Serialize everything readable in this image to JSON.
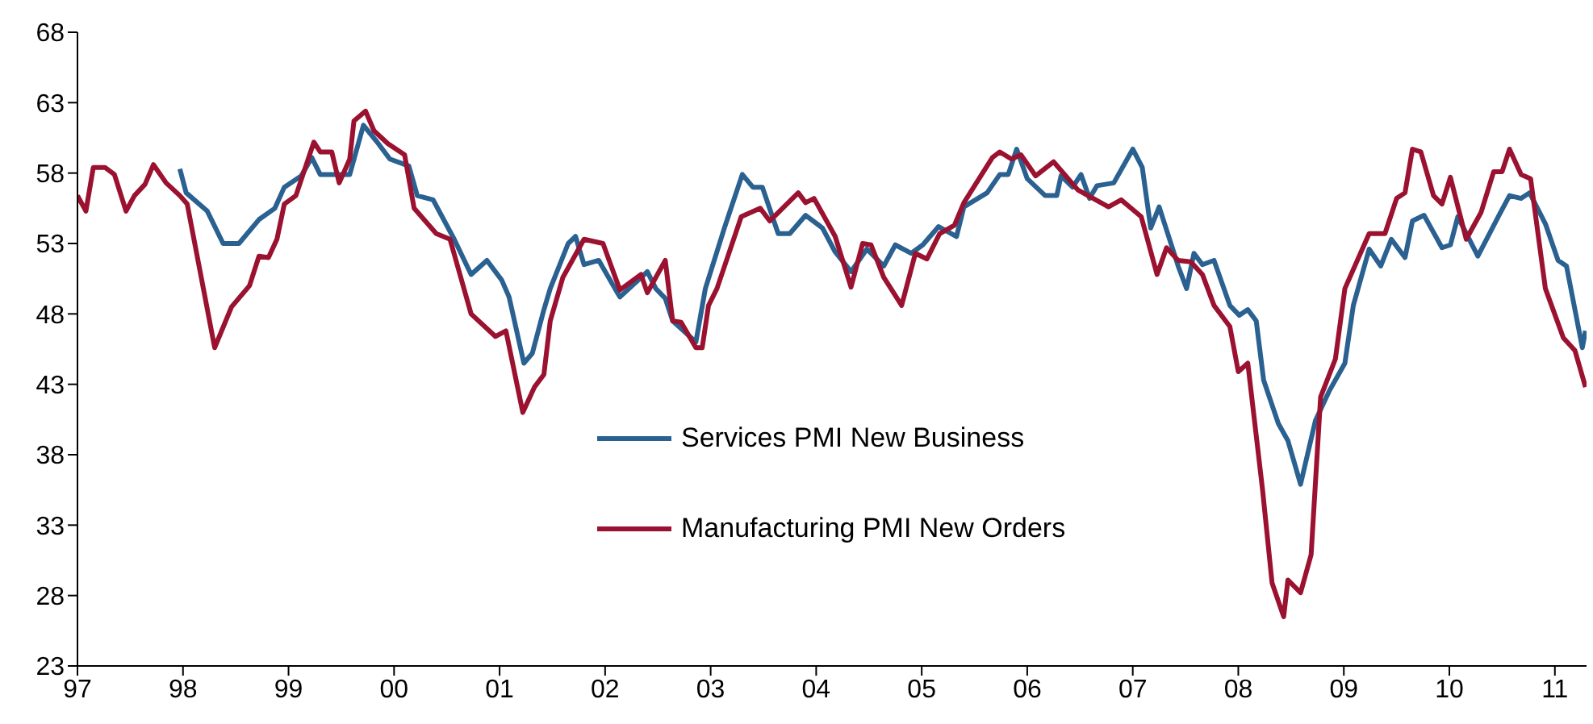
{
  "chart_data": {
    "type": "line",
    "xlim": [
      1997,
      2011.3
    ],
    "xticks": [
      {
        "value": 1997,
        "label": "97"
      },
      {
        "value": 1998,
        "label": "98"
      },
      {
        "value": 1999,
        "label": "99"
      },
      {
        "value": 2000,
        "label": "00"
      },
      {
        "value": 2001,
        "label": "01"
      },
      {
        "value": 2002,
        "label": "02"
      },
      {
        "value": 2003,
        "label": "03"
      },
      {
        "value": 2004,
        "label": "04"
      },
      {
        "value": 2005,
        "label": "05"
      },
      {
        "value": 2006,
        "label": "06"
      },
      {
        "value": 2007,
        "label": "07"
      },
      {
        "value": 2008,
        "label": "08"
      },
      {
        "value": 2009,
        "label": "09"
      },
      {
        "value": 2010,
        "label": "10"
      },
      {
        "value": 2011,
        "label": "11"
      }
    ],
    "ylim": [
      23,
      68
    ],
    "yticks": [
      23,
      28,
      33,
      38,
      43,
      48,
      53,
      58,
      63,
      68
    ],
    "grid": false,
    "legend": "center",
    "marker": "none",
    "line_style": "solid",
    "series": [
      {
        "name": "Services PMI New Business",
        "color": "#2a6190",
        "x": [
          1997.97,
          1998.03,
          1998.23,
          1998.38,
          1998.53,
          1998.72,
          1998.87,
          1998.96,
          1999.12,
          1999.22,
          1999.3,
          1999.45,
          1999.58,
          1999.71,
          1999.84,
          1999.96,
          2000.14,
          2000.22,
          2000.37,
          2000.57,
          2000.73,
          2000.88,
          2001.02,
          2001.09,
          2001.23,
          2001.31,
          2001.42,
          2001.48,
          2001.65,
          2001.72,
          2001.8,
          2001.94,
          2002.14,
          2002.4,
          2002.48,
          2002.57,
          2002.64,
          2002.86,
          2002.95,
          2003.13,
          2003.3,
          2003.4,
          2003.49,
          2003.64,
          2003.75,
          2003.9,
          2004.06,
          2004.18,
          2004.33,
          2004.48,
          2004.64,
          2004.75,
          2004.9,
          2005.01,
          2005.16,
          2005.33,
          2005.4,
          2005.62,
          2005.74,
          2005.82,
          2005.9,
          2006.0,
          2006.17,
          2006.28,
          2006.32,
          2006.43,
          2006.51,
          2006.59,
          2006.66,
          2006.82,
          2007.0,
          2007.09,
          2007.17,
          2007.25,
          2007.43,
          2007.51,
          2007.58,
          2007.66,
          2007.77,
          2007.92,
          2008.01,
          2008.09,
          2008.17,
          2008.24,
          2008.38,
          2008.47,
          2008.59,
          2008.73,
          2008.86,
          2009.01,
          2009.09,
          2009.24,
          2009.35,
          2009.45,
          2009.58,
          2009.65,
          2009.76,
          2009.93,
          2010.01,
          2010.08,
          2010.27,
          2010.47,
          2010.57,
          2010.68,
          2010.76,
          2010.91,
          2011.03,
          2011.11,
          2011.26,
          2011.29
        ],
        "values": [
          58.3,
          56.6,
          55.3,
          53.0,
          53.0,
          54.7,
          55.5,
          57.0,
          57.8,
          59.1,
          57.9,
          57.9,
          57.9,
          61.4,
          60.2,
          59.0,
          58.5,
          56.4,
          56.1,
          53.3,
          50.8,
          51.8,
          50.4,
          49.2,
          44.5,
          45.2,
          48.3,
          49.8,
          53.0,
          53.5,
          51.5,
          51.8,
          49.2,
          51.0,
          49.8,
          49.1,
          47.5,
          46.0,
          49.8,
          54.1,
          57.9,
          57.0,
          57.0,
          53.7,
          53.7,
          55.0,
          54.1,
          52.4,
          51.0,
          52.6,
          51.4,
          52.9,
          52.3,
          52.9,
          54.2,
          53.5,
          55.6,
          56.6,
          57.9,
          57.9,
          59.7,
          57.6,
          56.4,
          56.4,
          57.8,
          57.0,
          57.9,
          56.2,
          57.1,
          57.3,
          59.7,
          58.4,
          54.1,
          55.6,
          51.4,
          49.8,
          52.3,
          51.5,
          51.8,
          48.6,
          47.9,
          48.3,
          47.5,
          43.3,
          40.2,
          39.0,
          35.9,
          40.4,
          42.5,
          44.5,
          48.6,
          52.6,
          51.4,
          53.3,
          52.0,
          54.6,
          55.0,
          52.7,
          52.9,
          54.9,
          52.1,
          55.0,
          56.4,
          56.2,
          56.6,
          54.4,
          51.8,
          51.4,
          45.6,
          46.8
        ]
      },
      {
        "name": "Manufacturing PMI New Orders",
        "color": "#9b1230",
        "x": [
          1997.0,
          1997.08,
          1997.15,
          1997.26,
          1997.35,
          1997.46,
          1997.54,
          1997.64,
          1997.72,
          1997.84,
          1997.97,
          1998.04,
          1998.3,
          1998.46,
          1998.63,
          1998.72,
          1998.81,
          1998.89,
          1998.96,
          1999.07,
          1999.24,
          1999.3,
          1999.41,
          1999.48,
          1999.58,
          1999.62,
          1999.73,
          1999.81,
          1999.94,
          2000.1,
          2000.19,
          2000.4,
          2000.53,
          2000.73,
          2000.96,
          2001.06,
          2001.22,
          2001.33,
          2001.42,
          2001.48,
          2001.6,
          2001.8,
          2001.98,
          2002.14,
          2002.34,
          2002.4,
          2002.57,
          2002.64,
          2002.72,
          2002.86,
          2002.92,
          2002.98,
          2003.06,
          2003.29,
          2003.47,
          2003.56,
          2003.83,
          2003.9,
          2003.98,
          2004.18,
          2004.33,
          2004.44,
          2004.52,
          2004.64,
          2004.81,
          2004.94,
          2005.05,
          2005.17,
          2005.31,
          2005.4,
          2005.67,
          2005.74,
          2005.85,
          2005.94,
          2006.08,
          2006.25,
          2006.48,
          2006.77,
          2006.89,
          2007.08,
          2007.23,
          2007.32,
          2007.43,
          2007.55,
          2007.66,
          2007.77,
          2007.92,
          2008.0,
          2008.09,
          2008.23,
          2008.32,
          2008.43,
          2008.47,
          2008.59,
          2008.69,
          2008.78,
          2008.92,
          2009.01,
          2009.24,
          2009.39,
          2009.5,
          2009.58,
          2009.65,
          2009.73,
          2009.85,
          2009.93,
          2010.01,
          2010.16,
          2010.3,
          2010.42,
          2010.5,
          2010.57,
          2010.68,
          2010.77,
          2010.91,
          2011.08,
          2011.19,
          2011.29
        ],
        "values": [
          56.4,
          55.3,
          58.4,
          58.4,
          57.9,
          55.3,
          56.4,
          57.2,
          58.6,
          57.3,
          56.4,
          55.8,
          45.6,
          48.5,
          50.0,
          52.1,
          52.0,
          53.3,
          55.8,
          56.4,
          60.2,
          59.5,
          59.5,
          57.3,
          59.0,
          61.7,
          62.4,
          61.0,
          60.1,
          59.3,
          55.5,
          53.7,
          53.3,
          48.0,
          46.4,
          46.8,
          41.0,
          42.8,
          43.7,
          47.5,
          50.6,
          53.3,
          53.0,
          49.7,
          50.8,
          49.5,
          51.8,
          47.5,
          47.4,
          45.6,
          45.6,
          48.6,
          49.8,
          54.9,
          55.5,
          54.6,
          56.6,
          55.9,
          56.2,
          53.5,
          49.9,
          53.0,
          52.9,
          50.6,
          48.6,
          52.3,
          51.9,
          53.7,
          54.3,
          55.9,
          59.1,
          59.5,
          59.0,
          59.3,
          57.8,
          58.8,
          56.8,
          55.6,
          56.1,
          54.9,
          50.8,
          52.7,
          51.8,
          51.7,
          50.8,
          48.6,
          47.1,
          43.9,
          44.5,
          35.5,
          28.9,
          26.5,
          29.1,
          28.2,
          30.9,
          42.1,
          44.8,
          49.8,
          53.7,
          53.7,
          56.2,
          56.6,
          59.7,
          59.5,
          56.4,
          55.8,
          57.7,
          53.3,
          55.2,
          58.1,
          58.1,
          59.7,
          57.9,
          57.6,
          49.8,
          46.3,
          45.4,
          42.8
        ]
      }
    ]
  }
}
